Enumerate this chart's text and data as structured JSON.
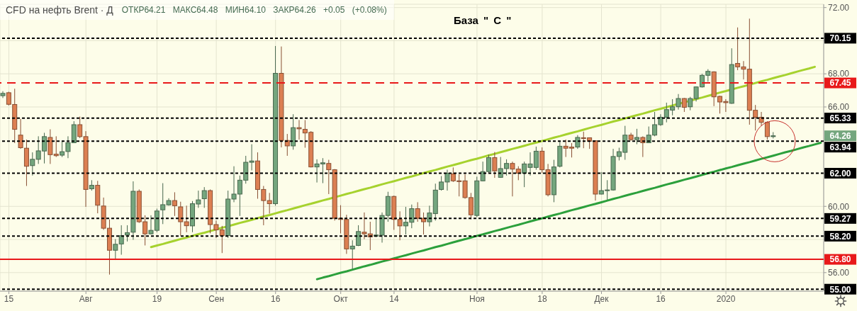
{
  "chart_data": {
    "type": "candlestick",
    "title": "CFD на нефть Brent · Д",
    "subtitle": "ОТКР64.21 МАКС64.48 МИН64.10 ЗАКР64.26 +0.05 (+0.08%)",
    "categories": [
      null,
      "15",
      null,
      null,
      null,
      null,
      null,
      null,
      null,
      null,
      null,
      null,
      null,
      null,
      "Авг",
      null,
      null,
      null,
      null,
      null,
      null,
      null,
      null,
      null,
      null,
      null,
      "19",
      null,
      null,
      null,
      null,
      null,
      null,
      null,
      null,
      null,
      "Сен",
      null,
      null,
      null,
      null,
      null,
      null,
      null,
      null,
      null,
      "16",
      null,
      null,
      null,
      null,
      null,
      null,
      null,
      null,
      null,
      null,
      "Окт",
      null,
      null,
      null,
      null,
      null,
      null,
      null,
      null,
      "14",
      null,
      null,
      null,
      null,
      null,
      null,
      null,
      null,
      null,
      null,
      null,
      null,
      null,
      "Ноя",
      null,
      null,
      null,
      null,
      null,
      null,
      null,
      null,
      null,
      null,
      "18",
      null,
      null,
      null,
      null,
      null,
      null,
      null,
      null,
      null,
      "Дек",
      null,
      null,
      null,
      null,
      null,
      null,
      null,
      null,
      null,
      "16",
      null,
      null,
      null,
      null,
      null,
      null,
      null,
      null,
      null,
      null,
      "2020",
      null,
      null,
      null,
      null,
      null,
      null,
      null,
      null,
      null,
      null,
      null,
      null,
      null,
      null,
      null,
      null
    ],
    "ohlc": [
      [
        66.68,
        66.95,
        66.54,
        66.82
      ],
      [
        66.86,
        66.92,
        66.09,
        66.16
      ],
      [
        66.15,
        67.1,
        63.82,
        64.65
      ],
      [
        64.3,
        65.28,
        63.47,
        63.54
      ],
      [
        63.51,
        64.03,
        61.23,
        62.42
      ],
      [
        62.46,
        63.26,
        61.86,
        62.84
      ],
      [
        62.84,
        64.23,
        62.56,
        63.35
      ],
      [
        63.34,
        64.44,
        62.59,
        64.21
      ],
      [
        64.16,
        64.65,
        62.56,
        63.12
      ],
      [
        63.15,
        64.23,
        62.98,
        63.06
      ],
      [
        63.09,
        63.96,
        62.98,
        63.3
      ],
      [
        63.31,
        64.23,
        62.91,
        63.84
      ],
      [
        63.84,
        65.14,
        63.82,
        64.93
      ],
      [
        64.93,
        65.42,
        64.12,
        64.21
      ],
      [
        64.21,
        64.54,
        59.97,
        61.02
      ],
      [
        61.06,
        61.58,
        60.95,
        61.27
      ],
      [
        61.27,
        61.54,
        59.58,
        60.07
      ],
      [
        60.02,
        60.53,
        58.58,
        58.68
      ],
      [
        58.68,
        59.21,
        55.88,
        57.35
      ],
      [
        57.35,
        58.02,
        56.76,
        57.71
      ],
      [
        57.73,
        58.86,
        57.08,
        58.23
      ],
      [
        58.27,
        58.86,
        57.88,
        58.41
      ],
      [
        58.44,
        61.51,
        57.98,
        60.91
      ],
      [
        60.91,
        61.02,
        59,
        59.07
      ],
      [
        59.07,
        59.46,
        57.64,
        58.34
      ],
      [
        58.34,
        59.46,
        58.3,
        58.55
      ],
      [
        58.55,
        59.86,
        58.44,
        59.72
      ],
      [
        59.79,
        61.4,
        58.93,
        60.1
      ],
      [
        60.09,
        60.49,
        60.04,
        60.35
      ],
      [
        60.35,
        60.85,
        59.42,
        60.04
      ],
      [
        59.97,
        60.28,
        58.23,
        59.07
      ],
      [
        59.07,
        60.04,
        58.44,
        58.83
      ],
      [
        58.82,
        60.32,
        58.44,
        60.16
      ],
      [
        60.14,
        60.95,
        59.91,
        60.39
      ],
      [
        60.46,
        61.16,
        59.91,
        60.95
      ],
      [
        60.95,
        61.02,
        58.37,
        58.9
      ],
      [
        58.9,
        59.14,
        58.09,
        58.58
      ],
      [
        58.58,
        58.82,
        57.18,
        58.23
      ],
      [
        58.23,
        60.95,
        58.09,
        60.44
      ],
      [
        60.44,
        62.42,
        60.25,
        60.74
      ],
      [
        60.74,
        61.86,
        59.42,
        61.58
      ],
      [
        61.58,
        63.05,
        61.37,
        62.66
      ],
      [
        62.66,
        63.75,
        62.17,
        62.74
      ],
      [
        62.74,
        63.26,
        60.46,
        61.02
      ],
      [
        61.02,
        61.23,
        58.86,
        60.35
      ],
      [
        60.35,
        60.81,
        59.56,
        60.16
      ],
      [
        60.16,
        69.68,
        60.04,
        68.03
      ],
      [
        68.03,
        69.65,
        63.56,
        63.98
      ],
      [
        63.98,
        64.37,
        63.05,
        63.65
      ],
      [
        63.65,
        65.56,
        63.42,
        64.75
      ],
      [
        64.75,
        65.21,
        64.03,
        64.68
      ],
      [
        64.65,
        65.21,
        63.54,
        64.43
      ],
      [
        64.47,
        64.54,
        62.35,
        62.38
      ],
      [
        62.38,
        62.84,
        61.44,
        62.56
      ],
      [
        62.56,
        62.91,
        61.4,
        62.63
      ],
      [
        62.59,
        62.81,
        60.74,
        62.21
      ],
      [
        62.21,
        62.25,
        59.14,
        59.28
      ],
      [
        59.28,
        60.07,
        58.37,
        59.21
      ],
      [
        59.21,
        59.49,
        57.13,
        57.43
      ],
      [
        57.43,
        57.95,
        56.2,
        57.6
      ],
      [
        57.64,
        58.86,
        57.6,
        58.48
      ],
      [
        58.44,
        59.63,
        58.02,
        58.34
      ],
      [
        58.34,
        59.07,
        57.36,
        58.16
      ],
      [
        58.2,
        59.28,
        58.16,
        58.27
      ],
      [
        58.26,
        59.63,
        57.81,
        59.45
      ],
      [
        59.45,
        60.88,
        59.07,
        60.6
      ],
      [
        60.6,
        60.65,
        58.58,
        59.21
      ],
      [
        59.21,
        59.7,
        57.95,
        58.82
      ],
      [
        58.82,
        59.97,
        58.3,
        59.04
      ],
      [
        59.04,
        60.11,
        58.68,
        59.86
      ],
      [
        59.86,
        60.25,
        59.07,
        59.28
      ],
      [
        59.28,
        59.63,
        58.3,
        59.07
      ],
      [
        59.07,
        60.04,
        58.79,
        59.6
      ],
      [
        59.56,
        61.37,
        59.14,
        60.98
      ],
      [
        61.02,
        61.83,
        60.95,
        61.47
      ],
      [
        61.47,
        62.21,
        60.95,
        62
      ],
      [
        61.96,
        62.35,
        61.47,
        61.54
      ],
      [
        61.54,
        61.93,
        60.6,
        61.51
      ],
      [
        61.54,
        61.93,
        60.46,
        60.53
      ],
      [
        60.53,
        60.81,
        59.21,
        59.49
      ],
      [
        59.45,
        61.79,
        59.35,
        61.54
      ],
      [
        61.54,
        62.7,
        61.51,
        62.1
      ],
      [
        62.1,
        63.12,
        62,
        62.94
      ],
      [
        62.94,
        63.28,
        61.72,
        62.14
      ],
      [
        61.75,
        62.98,
        61.72,
        62.28
      ],
      [
        62.28,
        62.84,
        61.86,
        62.59
      ],
      [
        62.59,
        62.7,
        60.6,
        62.25
      ],
      [
        62.25,
        62.42,
        61.58,
        62
      ],
      [
        62,
        62.7,
        61.16,
        62.56
      ],
      [
        62.35,
        63.26,
        61.86,
        62.56
      ],
      [
        62.35,
        63.61,
        62.21,
        63.33
      ],
      [
        63.33,
        63.56,
        62,
        62.21
      ],
      [
        62.21,
        62.56,
        60.6,
        60.7
      ],
      [
        60.7,
        62.81,
        60.25,
        62.38
      ],
      [
        62.42,
        63.96,
        62.35,
        63.63
      ],
      [
        63.63,
        64.03,
        62.98,
        63.51
      ],
      [
        63.58,
        63.82,
        62.95,
        63.51
      ],
      [
        63.58,
        64.3,
        63.47,
        64.16
      ],
      [
        64.14,
        64.51,
        63.51,
        64.1
      ],
      [
        64.14,
        64.16,
        63.47,
        63.93
      ],
      [
        63.96,
        63.98,
        60.35,
        60.74
      ],
      [
        60.74,
        62.07,
        60.72,
        60.95
      ],
      [
        60.95,
        61.58,
        60.39,
        60.99
      ],
      [
        60.99,
        63.47,
        60.95,
        63.01
      ],
      [
        63.01,
        63.54,
        62.77,
        63.3
      ],
      [
        63.26,
        64.86,
        62.81,
        64.3
      ],
      [
        64.3,
        64.44,
        63.96,
        64.03
      ],
      [
        64.03,
        64.68,
        63.75,
        64.16
      ],
      [
        64.16,
        64.23,
        62.98,
        63.84
      ],
      [
        63.84,
        64.82,
        63.82,
        64.3
      ],
      [
        64.3,
        65.7,
        64.23,
        64.93
      ],
      [
        64.93,
        65.56,
        64.86,
        65.38
      ],
      [
        65.38,
        66.26,
        65.07,
        65.84
      ],
      [
        65.81,
        66.47,
        65.49,
        66.01
      ],
      [
        66.01,
        66.78,
        65.84,
        66.51
      ],
      [
        66.51,
        66.54,
        65.7,
        65.98
      ],
      [
        66.01,
        66.61,
        65.8,
        66.51
      ],
      [
        66.51,
        67.24,
        66.33,
        67.21
      ],
      [
        67.21,
        68,
        67.17,
        67.91
      ],
      [
        67.91,
        68.28,
        67.52,
        68.15
      ],
      [
        68.12,
        68.15,
        66.05,
        66.61
      ],
      [
        66.64,
        66.68,
        65.6,
        66.3
      ],
      [
        66.33,
        66.47,
        65.7,
        66.26
      ],
      [
        66.22,
        69.54,
        66.19,
        68.56
      ],
      [
        68.63,
        70.8,
        68.22,
        68.42
      ],
      [
        68.42,
        68.77,
        67.66,
        68.28
      ],
      [
        68.28,
        71.33,
        64.93,
        65.8
      ],
      [
        65.8,
        66.12,
        64.58,
        65.38
      ],
      [
        65.38,
        65.7,
        64.86,
        65.07
      ],
      [
        65.07,
        65.14,
        64.03,
        64.21
      ],
      [
        64.21,
        64.48,
        64.1,
        64.26
      ],
      null,
      null,
      null,
      null,
      null,
      null,
      null,
      null
    ],
    "colors": [
      "#74a67e",
      "#dc7f52",
      "#dc7f52",
      "#dc7f52",
      "#dc7f52",
      "#74a67e",
      "#74a67e",
      "#74a67e",
      "#dc7f52",
      "#dc7f52",
      "#74a67e",
      "#74a67e",
      "#74a67e",
      "#dc7f52",
      "#dc7f52",
      "#74a67e",
      "#dc7f52",
      "#dc7f52",
      "#dc7f52",
      "#74a67e",
      "#74a67e",
      "#74a67e",
      "#74a67e",
      "#dc7f52",
      "#dc7f52",
      "#74a67e",
      "#74a67e",
      "#74a67e",
      "#74a67e",
      "#dc7f52",
      "#dc7f52",
      "#dc7f52",
      "#74a67e",
      "#74a67e",
      "#74a67e",
      "#dc7f52",
      "#dc7f52",
      "#dc7f52",
      "#74a67e",
      "#74a67e",
      "#74a67e",
      "#74a67e",
      "#74a67e",
      "#dc7f52",
      "#dc7f52",
      "#dc7f52",
      "#74a67e",
      "#dc7f52",
      "#dc7f52",
      "#74a67e",
      "#dc7f52",
      "#dc7f52",
      "#dc7f52",
      "#74a67e",
      "#74a67e",
      "#dc7f52",
      "#dc7f52",
      "#dc7f52",
      "#dc7f52",
      "#74a67e",
      "#74a67e",
      "#dc7f52",
      "#dc7f52",
      "#74a67e",
      "#74a67e",
      "#74a67e",
      "#dc7f52",
      "#dc7f52",
      "#74a67e",
      "#74a67e",
      "#dc7f52",
      "#dc7f52",
      "#74a67e",
      "#74a67e",
      "#74a67e",
      "#74a67e",
      "#dc7f52",
      "#dc7f52",
      "#dc7f52",
      "#dc7f52",
      "#74a67e",
      "#74a67e",
      "#74a67e",
      "#dc7f52",
      "#74a67e",
      "#74a67e",
      "#dc7f52",
      "#dc7f52",
      "#74a67e",
      "#74a67e",
      "#74a67e",
      "#dc7f52",
      "#dc7f52",
      "#74a67e",
      "#74a67e",
      "#dc7f52",
      "#dc7f52",
      "#74a67e",
      "#dc7f52",
      "#dc7f52",
      "#dc7f52",
      "#74a67e",
      "#74a67e",
      "#74a67e",
      "#74a67e",
      "#74a67e",
      "#dc7f52",
      "#74a67e",
      "#dc7f52",
      "#74a67e",
      "#74a67e",
      "#74a67e",
      "#74a67e",
      "#74a67e",
      "#74a67e",
      "#dc7f52",
      "#74a67e",
      "#74a67e",
      "#74a67e",
      "#74a67e",
      "#dc7f52",
      "#dc7f52",
      "#dc7f52",
      "#74a67e",
      "#dc7f52",
      "#dc7f52",
      "#dc7f52",
      "#dc7f52",
      "#dc7f52",
      "#dc7f52",
      "#74a67e",
      null,
      null,
      null,
      null,
      null,
      null,
      null,
      null
    ],
    "series": [
      {
        "type": "line",
        "color": "#a6d22e",
        "values": [
          null,
          null,
          null,
          null,
          null,
          null,
          null,
          null,
          null,
          null,
          null,
          null,
          null,
          null,
          null,
          null,
          null,
          null,
          null,
          null,
          null,
          null,
          null,
          null,
          null,
          57.54,
          57.64,
          57.73,
          57.83,
          57.93,
          58.03,
          58.12,
          58.22,
          58.32,
          58.41,
          58.51,
          58.61,
          58.71,
          58.8,
          58.9,
          59,
          59.09,
          59.19,
          59.29,
          59.39,
          59.48,
          59.58,
          59.68,
          59.77,
          59.87,
          59.97,
          60.07,
          60.16,
          60.26,
          60.36,
          60.45,
          60.55,
          60.65,
          60.75,
          60.84,
          60.94,
          61.04,
          61.13,
          61.23,
          61.33,
          61.43,
          61.52,
          61.62,
          61.72,
          61.81,
          61.91,
          62.01,
          62.11,
          62.2,
          62.3,
          62.4,
          62.49,
          62.59,
          62.69,
          62.79,
          62.88,
          62.98,
          63.08,
          63.17,
          63.27,
          63.37,
          63.47,
          63.56,
          63.66,
          63.76,
          63.85,
          63.95,
          64.05,
          64.15,
          64.24,
          64.34,
          64.44,
          64.53,
          64.63,
          64.73,
          64.83,
          64.92,
          65.02,
          65.12,
          65.21,
          65.31,
          65.41,
          65.51,
          65.6,
          65.7,
          65.8,
          65.89,
          65.99,
          66.09,
          66.19,
          66.28,
          66.38,
          66.48,
          66.57,
          66.67,
          66.77,
          66.87,
          66.96,
          67.06,
          67.16,
          67.25,
          67.35,
          67.45,
          67.55,
          67.64,
          67.74,
          67.84,
          67.93,
          68.03,
          68.13,
          68.23,
          68.32,
          68.42,
          null
        ]
      },
      {
        "type": "line",
        "color": "#2ca03c",
        "values": [
          null,
          null,
          null,
          null,
          null,
          null,
          null,
          null,
          null,
          null,
          null,
          null,
          null,
          null,
          null,
          null,
          null,
          null,
          null,
          null,
          null,
          null,
          null,
          null,
          null,
          null,
          null,
          null,
          null,
          null,
          null,
          null,
          null,
          null,
          null,
          null,
          null,
          null,
          null,
          null,
          null,
          null,
          null,
          null,
          null,
          null,
          null,
          null,
          null,
          null,
          null,
          null,
          null,
          55.6,
          55.7,
          55.79,
          55.89,
          55.99,
          56.08,
          56.18,
          56.28,
          56.38,
          56.47,
          56.57,
          56.67,
          56.76,
          56.86,
          56.96,
          57.05,
          57.15,
          57.25,
          57.34,
          57.44,
          57.54,
          57.63,
          57.73,
          57.83,
          57.93,
          58.02,
          58.12,
          58.22,
          58.31,
          58.41,
          58.51,
          58.6,
          58.7,
          58.8,
          58.89,
          58.99,
          59.09,
          59.19,
          59.28,
          59.38,
          59.48,
          59.57,
          59.67,
          59.77,
          59.86,
          59.96,
          60.06,
          60.15,
          60.25,
          60.35,
          60.45,
          60.54,
          60.64,
          60.74,
          60.83,
          60.93,
          61.03,
          61.12,
          61.22,
          61.32,
          61.41,
          61.51,
          61.61,
          61.7,
          61.8,
          61.9,
          62,
          62.09,
          62.19,
          62.29,
          62.38,
          62.48,
          62.58,
          62.67,
          62.77,
          62.87,
          62.96,
          63.06,
          63.16,
          63.26,
          63.35,
          63.45,
          63.55,
          63.64,
          63.74,
          63.84
        ]
      }
    ],
    "ylim": [
      54.88,
      72.2
    ],
    "yticks": [
      {
        "value": 56,
        "label": "56.00"
      },
      {
        "value": 58,
        "label": null
      },
      {
        "value": 60,
        "label": "60.00"
      },
      {
        "value": 66,
        "label": "66.00"
      },
      {
        "value": 68,
        "label": "68.00"
      },
      {
        "value": 70,
        "label": null
      },
      {
        "value": 72,
        "label": "72.00"
      }
    ],
    "grid": true,
    "ref_lines": [
      {
        "axis": "y",
        "value": 70.15,
        "label": "70.15",
        "color": "#000000",
        "line_style": "dotted"
      },
      {
        "axis": "y",
        "value": 67.45,
        "label": "67.45",
        "color": "#e8191a",
        "line_style": "dashed"
      },
      {
        "axis": "y",
        "value": 65.33,
        "label": "65.33",
        "color": "#000000",
        "line_style": "dotted"
      },
      {
        "axis": "y",
        "value": 63.94,
        "label": "63.94",
        "color": "#000000",
        "line_style": "dotted"
      },
      {
        "axis": "y",
        "value": 62,
        "label": "62.00",
        "color": "#000000",
        "line_style": "dotted"
      },
      {
        "axis": "y",
        "value": 59.27,
        "label": "59.27",
        "color": "#000000",
        "line_style": "dotted"
      },
      {
        "axis": "y",
        "value": 58.2,
        "label": "58.20",
        "color": "#000000",
        "line_style": "dotted"
      },
      {
        "axis": "y",
        "value": 56.8,
        "label": "56.80",
        "color": "#e8191a",
        "line_style": "solid"
      },
      {
        "axis": "y",
        "value": 55,
        "label": "55.00",
        "color": "#000000",
        "line_style": "dotted"
      }
    ],
    "annotations": [
      "База \" С \"",
      "64.26"
    ]
  }
}
